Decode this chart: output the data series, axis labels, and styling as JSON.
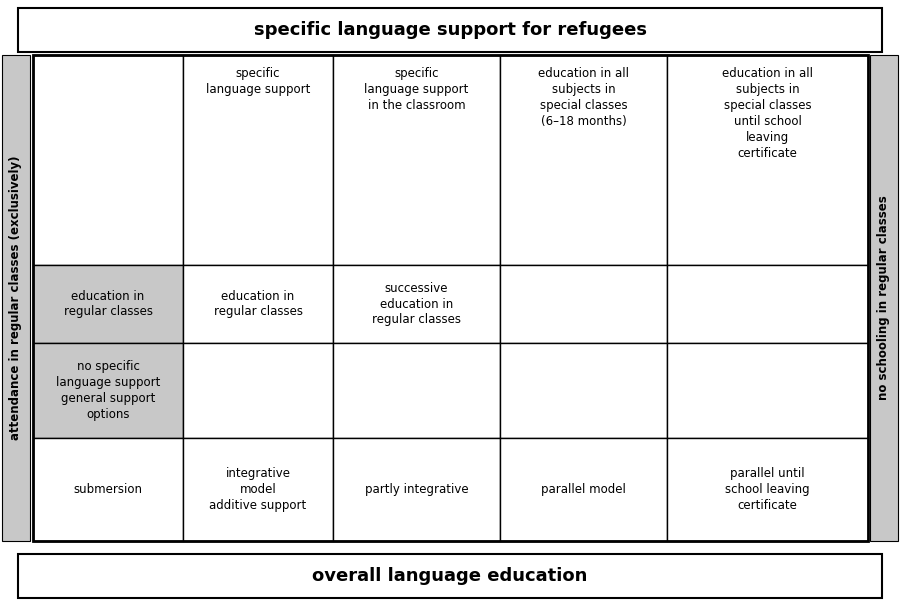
{
  "title_top": "specific language support for refugees",
  "title_bottom": "overall language education",
  "left_label": "attendance in regular classes (exclusively)",
  "right_label": "no schooling in regular classes",
  "col_headers": [
    "",
    "specific\nlanguage support",
    "specific\nlanguage support\nin the classroom",
    "education in all\nsubjects in\nspecial classes\n(6–18 months)",
    "education in all\nsubjects in\nspecial classes\nuntil school\nleaving\ncertificate"
  ],
  "row2_cells": [
    "education in\nregular classes",
    "education in\nregular classes",
    "successive\neducation in\nregular classes",
    "",
    ""
  ],
  "row3_cells": [
    "no specific\nlanguage support\ngeneral support\noptions",
    "",
    "",
    "",
    ""
  ],
  "row4_cells": [
    "submersion",
    "integrative\nmodel\nadditive support",
    "partly integrative",
    "parallel model",
    "parallel until\nschool leaving\ncertificate"
  ],
  "bg_white": "#ffffff",
  "bg_gray": "#c8c8c8",
  "border_color": "#000000",
  "text_color": "#000000",
  "font_size_title": 13,
  "font_size_cell": 8.5,
  "font_size_label": 8.5
}
